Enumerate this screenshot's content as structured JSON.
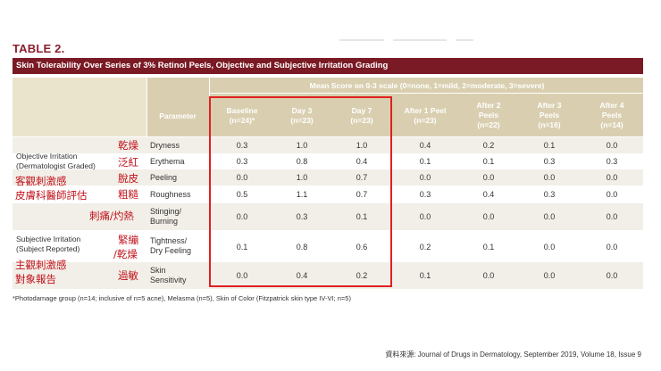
{
  "table_label": "TABLE 2.",
  "title": "Skin Tolerability Over Series of 3% Retinol Peels, Objective and Subjective Irritation Grading",
  "scale_header": "Mean Score on 0-3 scale (0=none, 1=mild, 2=moderate, 3=severe)",
  "parameter_header": "Parameter",
  "columns": [
    {
      "l1": "Baseline",
      "l2": "(n=24)*"
    },
    {
      "l1": "Day 3",
      "l2": "(n=23)"
    },
    {
      "l1": "Day 7",
      "l2": "(n=23)"
    },
    {
      "l1": "After 1 Peel",
      "l2": "(n=23)"
    },
    {
      "l1": "After 2",
      "l2": "Peels",
      "l3": "(n=22)"
    },
    {
      "l1": "After 3",
      "l2": "Peels",
      "l3": "(n=16)"
    },
    {
      "l1": "After 4",
      "l2": "Peels",
      "l3": "(n=14)"
    }
  ],
  "groups": {
    "objective_l1": "Objective Irritation",
    "objective_l2": "(Dermatologist Graded)",
    "subjective_l1": "Subjective Irritation",
    "subjective_l2": "(Subject Reported)"
  },
  "rows": [
    {
      "param_l1": "Dryness",
      "values": [
        "0.3",
        "1.0",
        "1.0",
        "0.4",
        "0.2",
        "0.1",
        "0.0"
      ]
    },
    {
      "param_l1": "Erythema",
      "values": [
        "0.3",
        "0.8",
        "0.4",
        "0.1",
        "0.1",
        "0.3",
        "0.3"
      ]
    },
    {
      "param_l1": "Peeling",
      "values": [
        "0.0",
        "1.0",
        "0.7",
        "0.0",
        "0.0",
        "0.0",
        "0.0"
      ]
    },
    {
      "param_l1": "Roughness",
      "values": [
        "0.5",
        "1.1",
        "0.7",
        "0.3",
        "0.4",
        "0.3",
        "0.0"
      ]
    },
    {
      "param_l1": "Stinging/",
      "param_l2": "Burning",
      "values": [
        "0.0",
        "0.3",
        "0.1",
        "0.0",
        "0.0",
        "0.0",
        "0.0"
      ]
    },
    {
      "param_l1": "Tightness/",
      "param_l2": "Dry Feeling",
      "values": [
        "0.1",
        "0.8",
        "0.6",
        "0.2",
        "0.1",
        "0.0",
        "0.0"
      ]
    },
    {
      "param_l1": "Skin",
      "param_l2": "Sensitivity",
      "values": [
        "0.0",
        "0.4",
        "0.2",
        "0.1",
        "0.0",
        "0.0",
        "0.0"
      ]
    }
  ],
  "annotations": {
    "dryness": "乾燥",
    "erythema": "泛紅",
    "peeling": "脫皮",
    "roughness": "粗糙",
    "objective_zh_l1": "客觀刺激感",
    "objective_zh_l2": "皮膚科醫師評估",
    "stinging": "刺痛/灼熱",
    "tightness_l1": "緊繃",
    "tightness_l2": "/乾燥",
    "subjective_zh_l1": "主觀刺激感",
    "subjective_zh_l2": "對象報告",
    "sensitivity": "過敏"
  },
  "footnote": "*Photodamage group (n=14; inclusive of n=5 acne), Melasma (n=5), Skin of Color (Fitzpatrick skin type IV-VI; n=5)",
  "source": "資料來源: Journal of Drugs in Dermatology, September 2019, Volume 18, Issue 9",
  "colors": {
    "title_bar": "#7a1a24",
    "header_fill": "#d9cfb0",
    "highlight_box": "#e02020",
    "annotation": "#c0111a"
  }
}
